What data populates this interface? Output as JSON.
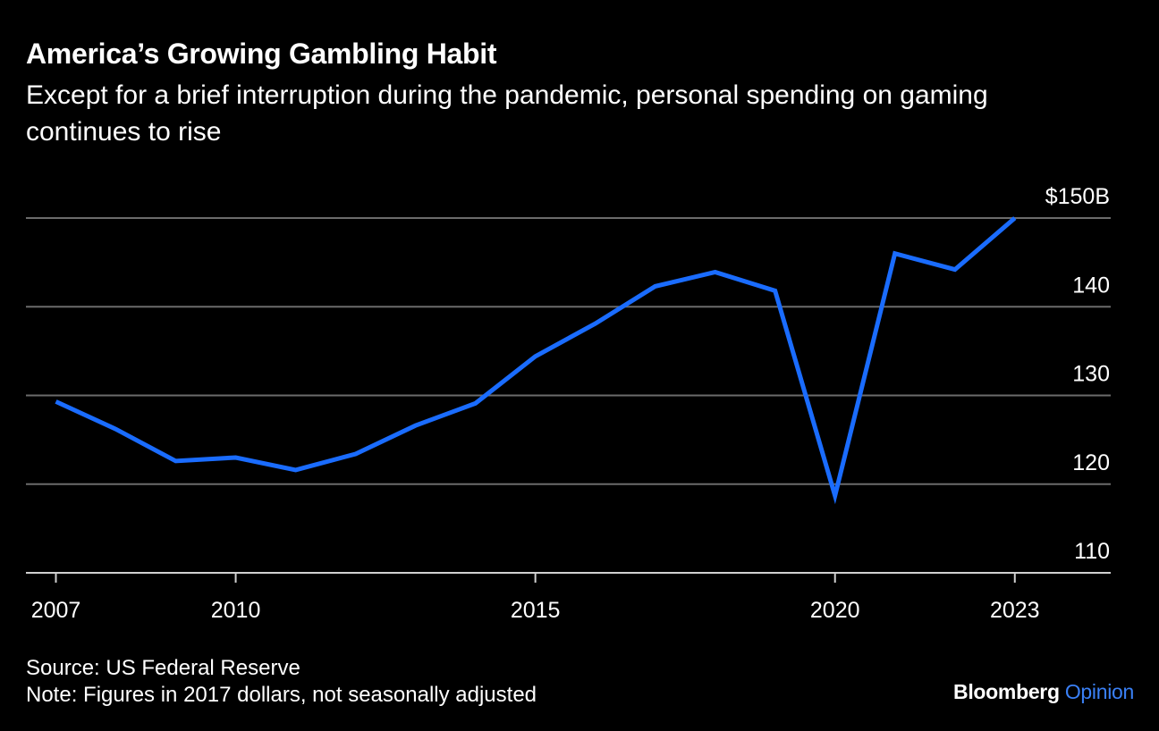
{
  "header": {
    "title": "America’s Growing Gambling Habit",
    "subtitle": "Except for a brief interruption during the pandemic, personal spending on gaming continues to rise"
  },
  "footer": {
    "source": "Source: US Federal Reserve",
    "note": "Note: Figures in 2017 dollars, not seasonally adjusted",
    "brand_main": "Bloomberg",
    "brand_accent": "Opinion"
  },
  "colors": {
    "background": "#000000",
    "line": "#1a6cff",
    "grid": "#6b6b6b",
    "text": "#ffffff",
    "brand_accent": "#3a80f6"
  },
  "chart_data": {
    "type": "line",
    "title": "America’s Growing Gambling Habit",
    "subtitle": "Except for a brief interruption during the pandemic, personal spending on gaming continues to rise",
    "xlabel": "",
    "ylabel": "",
    "x": [
      2007,
      2008,
      2009,
      2010,
      2011,
      2012,
      2013,
      2014,
      2015,
      2016,
      2017,
      2018,
      2019,
      2020,
      2021,
      2022,
      2023
    ],
    "series": [
      {
        "name": "",
        "values": [
          129.3,
          126.2,
          122.6,
          123.0,
          121.6,
          123.4,
          126.6,
          129.1,
          134.4,
          138.1,
          142.3,
          143.9,
          141.8,
          118.7,
          146.0,
          144.2,
          150.0
        ]
      }
    ],
    "xlim": [
      2006.5,
      2024.6
    ],
    "ylim": [
      110,
      150
    ],
    "x_ticks": [
      2007,
      2010,
      2015,
      2020,
      2023
    ],
    "x_tick_labels": [
      "2007",
      "2010",
      "2015",
      "2020",
      "2023"
    ],
    "y_ticks": [
      110,
      120,
      130,
      140,
      150
    ],
    "y_tick_labels": [
      "110",
      "120",
      "130",
      "140",
      "$150B"
    ],
    "grid": true,
    "y_axis_side": "right"
  }
}
